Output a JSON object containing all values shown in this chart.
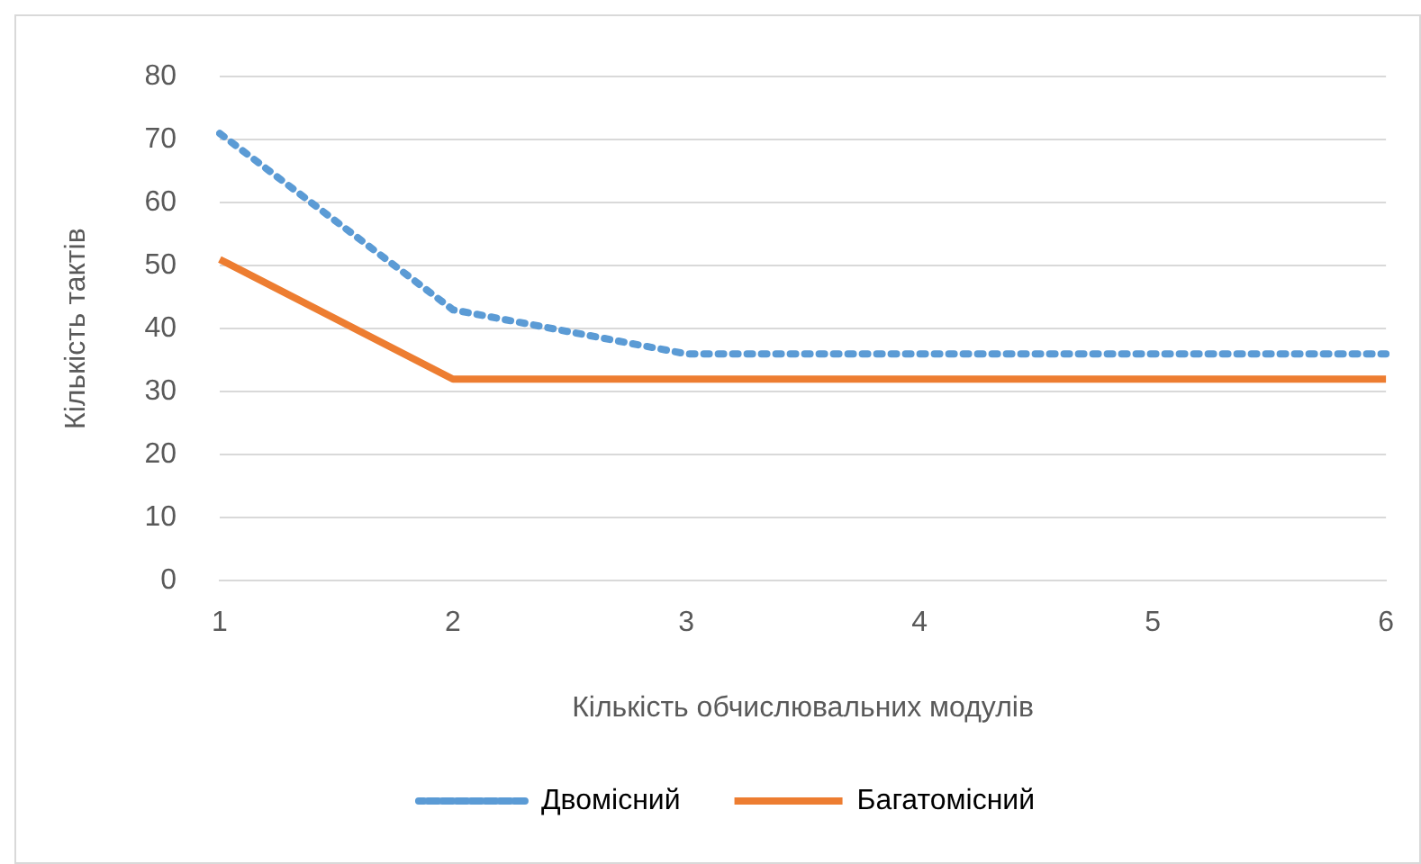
{
  "chart_data": {
    "type": "line",
    "xlabel": "Кількість обчислювальних модулів",
    "ylabel": "Кількість тактів",
    "categories": [
      "1",
      "2",
      "3",
      "4",
      "5",
      "6"
    ],
    "series": [
      {
        "name": "Двомісний",
        "color": "#5b9bd5",
        "values": [
          71,
          43,
          36,
          36,
          36,
          36
        ],
        "line_style": "dotted"
      },
      {
        "name": "Багатомісний",
        "color": "#ed7d31",
        "values": [
          51,
          32,
          32,
          32,
          32,
          32
        ],
        "line_style": "solid"
      }
    ],
    "ylim": [
      0,
      80
    ],
    "yticks": [
      0,
      10,
      20,
      30,
      40,
      50,
      60,
      70,
      80
    ],
    "grid": "y",
    "legend": "bottom",
    "marker": "none"
  }
}
